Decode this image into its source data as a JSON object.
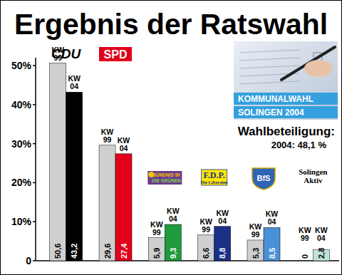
{
  "chart_data": {
    "type": "bar",
    "title": "Ergebnis der Ratswahl",
    "categories": [
      "CDU",
      "SPD",
      "BÜNDNIS 90 DIE GRÜNEN",
      "F.D.P. Die Liberalen",
      "BfS",
      "Solingen Aktiv"
    ],
    "series": [
      {
        "name": "KW 99",
        "color": "#cfcfcf",
        "values": [
          50.6,
          29.6,
          5.9,
          6.6,
          5.3,
          0
        ],
        "value_labels": [
          "50,6",
          "29,6",
          "5,9",
          "6,6",
          "5,3",
          "0"
        ]
      },
      {
        "name": "KW 04",
        "colors": [
          "#000000",
          "#e3001b",
          "#1f9a3c",
          "#1b2f86",
          "#4a90d8",
          "#bfe3da"
        ],
        "values": [
          43.2,
          27.4,
          9.3,
          8.8,
          8.5,
          2.8
        ],
        "value_labels": [
          "43,2",
          "27,4",
          "9,3",
          "8,8",
          "8,5",
          "2,8"
        ]
      }
    ],
    "ylim": [
      0,
      52
    ],
    "yticks": [
      0,
      {
        "value": 10,
        "label": "10%"
      },
      {
        "value": 20,
        "label": "20%"
      },
      {
        "value": 30,
        "label": "30%"
      },
      {
        "value": 40,
        "label": "40%"
      },
      {
        "value": 50,
        "label": "50%"
      }
    ],
    "grid": false,
    "data_labels": true,
    "annotations": [
      "KOMMUNALWAHL",
      "SOLINGEN 2004",
      "Wahlbeteiligung:",
      "2004: 48,1 %"
    ]
  }
}
